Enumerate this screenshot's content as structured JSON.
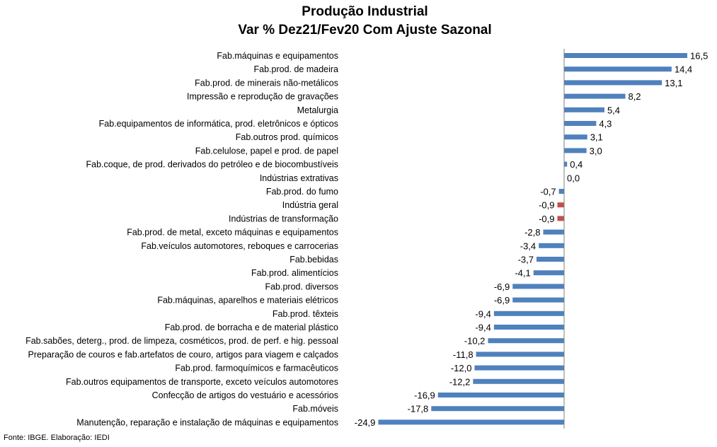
{
  "chart_data": {
    "type": "bar",
    "orientation": "horizontal",
    "title": "Produção Industrial",
    "subtitle": "Var % Dez21/Fev20 Com Ajuste Sazonal",
    "xlabel": "",
    "ylabel": "",
    "xlim": [
      -26,
      18
    ],
    "grid": false,
    "legend": "none",
    "colors": {
      "default": "#4F81BD",
      "highlight": "#C0504D",
      "axis": "#7f7f7f"
    },
    "categories": [
      "Fab.máquinas e equipamentos",
      "Fab.prod. de madeira",
      "Fab.prod. de minerais não-metálicos",
      "Impressão e reprodução de gravações",
      "Metalurgia",
      "Fab.equipamentos de informática, prod. eletrônicos e ópticos",
      "Fab.outros prod. químicos",
      "Fab.celulose, papel e prod. de papel",
      "Fab.coque, de prod. derivados do petróleo e de biocombustíveis",
      "Indústrias extrativas",
      "Fab.prod. do fumo",
      "Indústria geral",
      "Indústrias de transformação",
      "Fab.prod. de metal, exceto máquinas e equipamentos",
      "Fab.veículos automotores, reboques e carrocerias",
      "Fab.bebidas",
      "Fab.prod. alimentícios",
      "Fab.prod. diversos",
      "Fab.máquinas, aparelhos e materiais elétricos",
      "Fab.prod. têxteis",
      "Fab.prod. de borracha e de material plástico",
      "Fab.sabões, deterg., prod. de limpeza, cosméticos, prod. de perf. e hig. pessoal",
      "Preparação de couros e fab.artefatos de couro, artigos para viagem e calçados",
      "Fab.prod. farmoquímicos e farmacêuticos",
      "Fab.outros equipamentos de transporte, exceto veículos automotores",
      "Confecção de artigos do vestuário e acessórios",
      "Fab.móveis",
      "Manutenção, reparação e instalação de máquinas e equipamentos"
    ],
    "values": [
      16.5,
      14.4,
      13.1,
      8.2,
      5.4,
      4.3,
      3.1,
      3.0,
      0.4,
      0.0,
      -0.7,
      -0.9,
      -0.9,
      -2.8,
      -3.4,
      -3.7,
      -4.1,
      -6.9,
      -6.9,
      -9.4,
      -9.4,
      -10.2,
      -11.8,
      -12.0,
      -12.2,
      -16.9,
      -17.8,
      -24.9
    ],
    "value_labels": [
      "16,5",
      "14,4",
      "13,1",
      "8,2",
      "5,4",
      "4,3",
      "3,1",
      "3,0",
      "0,4",
      "0,0",
      "-0,7",
      "-0,9",
      "-0,9",
      "-2,8",
      "-3,4",
      "-3,7",
      "-4,1",
      "-6,9",
      "-6,9",
      "-9,4",
      "-9,4",
      "-10,2",
      "-11,8",
      "-12,0",
      "-12,2",
      "-16,9",
      "-17,8",
      "-24,9"
    ],
    "highlighted": [
      "Indústria geral",
      "Indústrias de transformação"
    ]
  },
  "source": "Fonte: IBGE. Elaboração: IEDI"
}
